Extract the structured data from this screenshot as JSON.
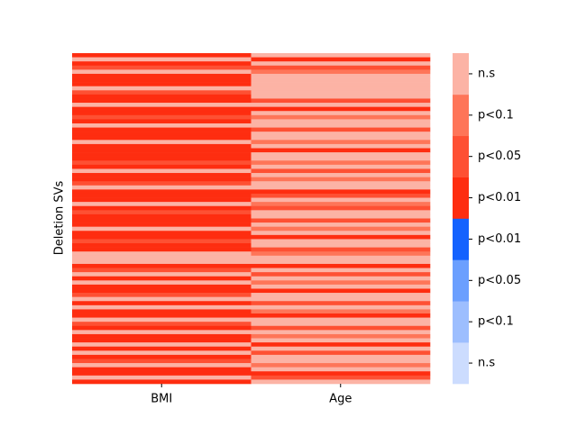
{
  "chart_data": {
    "type": "heatmap",
    "ylabel": "Deletion SVs",
    "categories": [
      "BMI",
      "Age"
    ],
    "values": [
      [
        0.5,
        3.5,
        0.5,
        1.5,
        3.5,
        0.5,
        0.5,
        0.5,
        3.5,
        1.5,
        0.5,
        0.5,
        3.5,
        0.5,
        0.5,
        1.5,
        0.5,
        3.5,
        0.5,
        0.5,
        0.5,
        3.5,
        0.5,
        0.5,
        0.5,
        0.5,
        1.5,
        0.5,
        3.5,
        0.5,
        0.5,
        1.5,
        3.5,
        0.5,
        0.5,
        0.5,
        3.5,
        0.5,
        1.5,
        0.5,
        0.5,
        0.5,
        3.5,
        0.5,
        0.5,
        1.5,
        0.5,
        0.5,
        3.5,
        3.5,
        3.5,
        0.5,
        1.5,
        3.5,
        0.5,
        3.5,
        0.5,
        0.5,
        1.5,
        3.5,
        0.5,
        3.5,
        0.5,
        0.5,
        3.5,
        1.5,
        0.5,
        3.5,
        0.5,
        0.5,
        3.5,
        0.5,
        3.5,
        0.5,
        1.5,
        3.5,
        0.5,
        0.5,
        3.5,
        0.5
      ],
      [
        3.5,
        0.5,
        3.5,
        1.5,
        2.5,
        3.5,
        3.5,
        3.5,
        3.5,
        3.5,
        3.5,
        1.5,
        3.5,
        0.5,
        3.5,
        2.5,
        3.5,
        3.5,
        1.5,
        3.5,
        3.5,
        2.5,
        3.5,
        0.5,
        3.5,
        3.5,
        2.5,
        3.5,
        1.5,
        3.5,
        2.5,
        3.5,
        3.5,
        0.5,
        1.5,
        3.5,
        2.5,
        1.5,
        3.5,
        3.5,
        1.5,
        3.5,
        2.5,
        3.5,
        0.5,
        3.5,
        3.5,
        1.5,
        2.5,
        3.5,
        3.5,
        0.5,
        3.5,
        1.5,
        3.5,
        2.5,
        3.5,
        0.5,
        3.5,
        3.5,
        1.5,
        3.5,
        2.5,
        0.5,
        3.5,
        3.5,
        1.5,
        3.5,
        2.5,
        3.5,
        0.5,
        3.5,
        1.5,
        3.5,
        3.5,
        2.5,
        3.5,
        0.5,
        1.5,
        3.5
      ]
    ],
    "colorbar": {
      "bins": [
        -4,
        -3,
        -2,
        -1,
        0,
        1,
        2,
        3,
        4
      ],
      "colors": [
        "#ccdcfe",
        "#9dbefe",
        "#6b9ffe",
        "#1462fe",
        "#fe2d10",
        "#fe5033",
        "#fe7558",
        "#fcb3a5"
      ],
      "ticks": [
        {
          "value": 3.5,
          "label": "n.s"
        },
        {
          "value": 2.5,
          "label": "p<0.1"
        },
        {
          "value": 1.5,
          "label": "p<0.05"
        },
        {
          "value": 0.5,
          "label": "p<0.01"
        },
        {
          "value": -0.5,
          "label": "p<0.01"
        },
        {
          "value": -1.5,
          "label": "p<0.05"
        },
        {
          "value": -2.5,
          "label": "p<0.1"
        },
        {
          "value": -3.5,
          "label": "n.s"
        }
      ]
    }
  }
}
